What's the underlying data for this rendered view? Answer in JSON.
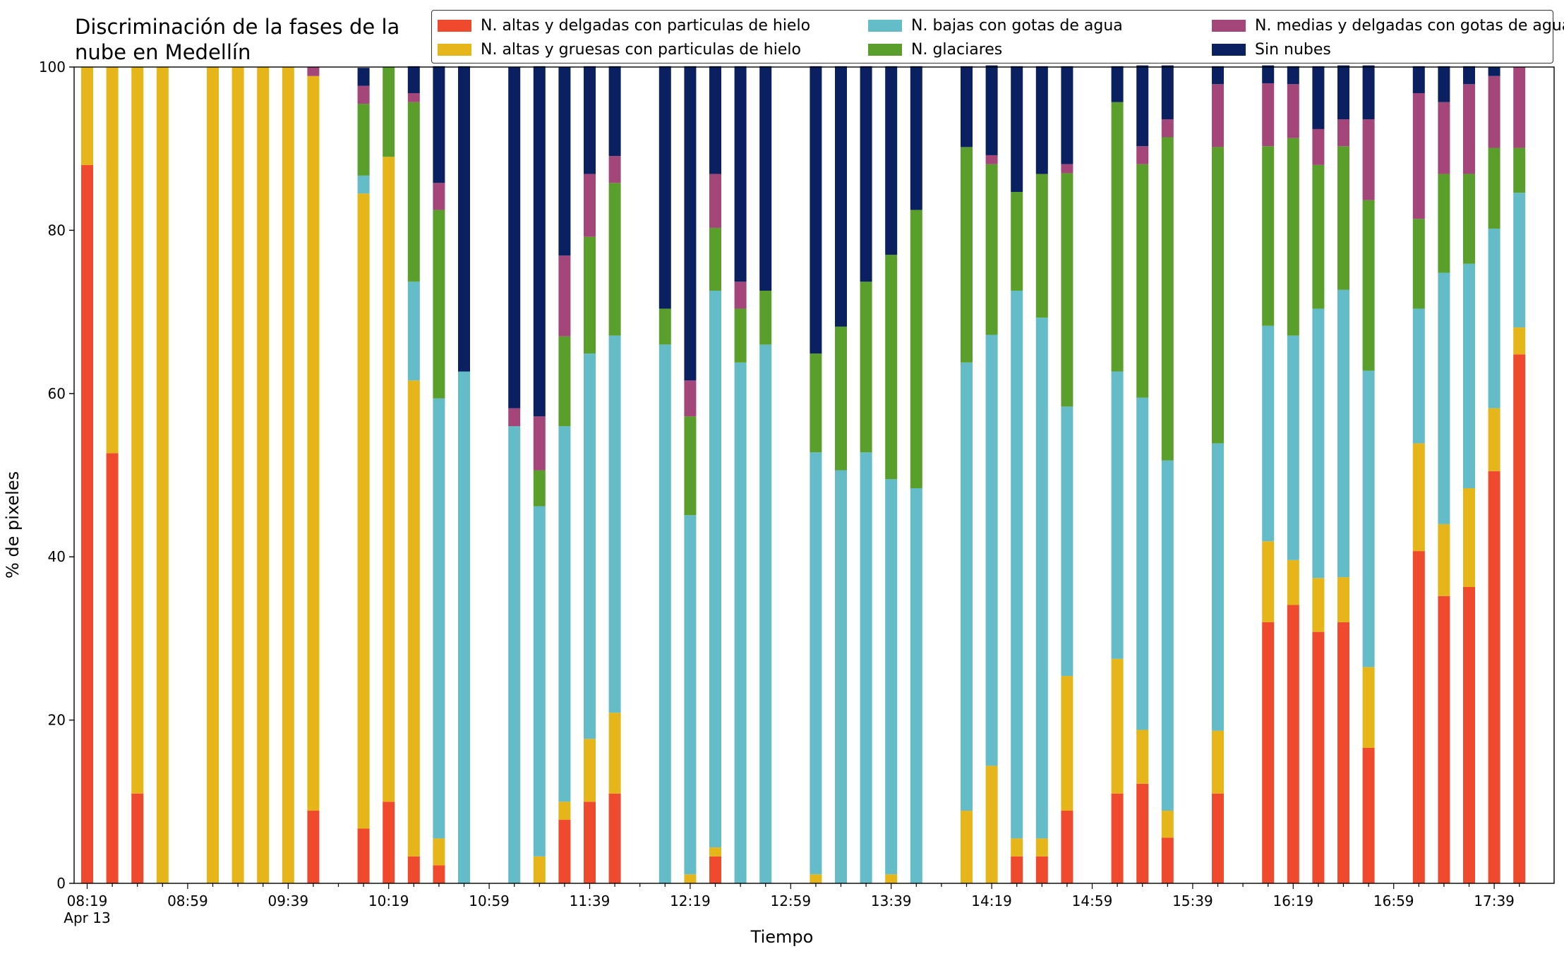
{
  "chart_data": {
    "type": "bar",
    "stacked": true,
    "title": "Discriminación de la fases de la\nnube en Medellín",
    "xlabel": "Tiempo",
    "ylabel": "% de pixeles",
    "ylim": [
      0,
      100
    ],
    "yticks": [
      "0",
      "20",
      "40",
      "60",
      "80",
      "100"
    ],
    "xtick_labels": [
      "08:19",
      "08:59",
      "09:39",
      "10:19",
      "10:59",
      "11:39",
      "12:19",
      "12:59",
      "13:39",
      "14:19",
      "14:59",
      "15:39",
      "16:19",
      "16:59",
      "17:39"
    ],
    "xdate_label": "Apr 13",
    "grid": false,
    "legend_position": "top-right",
    "x": [
      "08:19",
      "08:29",
      "08:39",
      "08:49",
      "08:59",
      "09:09",
      "09:19",
      "09:29",
      "09:39",
      "09:49",
      "09:59",
      "10:09",
      "10:19",
      "10:29",
      "10:39",
      "10:49",
      "10:59",
      "11:09",
      "11:19",
      "11:29",
      "11:39",
      "11:49",
      "11:59",
      "12:09",
      "12:19",
      "12:29",
      "12:39",
      "12:49",
      "12:59",
      "13:09",
      "13:19",
      "13:29",
      "13:39",
      "13:49",
      "13:59",
      "14:09",
      "14:19",
      "14:29",
      "14:39",
      "14:49",
      "14:59",
      "15:09",
      "15:19",
      "15:29",
      "15:39",
      "15:49",
      "15:59",
      "16:09",
      "16:19",
      "16:29",
      "16:39",
      "16:49",
      "16:59",
      "17:09",
      "17:19",
      "17:29",
      "17:39",
      "17:49"
    ],
    "series": [
      {
        "name": "N. altas y delgadas con particulas de hielo",
        "color": "#ef4a2d",
        "values": [
          88,
          52.7,
          11,
          0,
          null,
          0,
          0,
          0,
          0,
          8.9,
          null,
          6.7,
          10,
          3.3,
          2.2,
          0,
          null,
          0,
          0,
          7.8,
          10,
          11,
          null,
          0,
          0,
          3.3,
          0,
          0,
          null,
          0,
          0,
          0,
          0,
          0,
          null,
          0,
          0,
          3.3,
          3.3,
          8.9,
          null,
          11,
          12.2,
          5.6,
          null,
          11,
          null,
          32,
          34.1,
          30.8,
          32,
          16.6,
          null,
          40.7,
          35.2,
          36.3,
          50.5,
          64.8
        ]
      },
      {
        "name": "N. altas y gruesas con particulas de hielo",
        "color": "#e6b519",
        "values": [
          12,
          47.3,
          89,
          100,
          null,
          100,
          100,
          100,
          100,
          90,
          null,
          77.8,
          79,
          58.3,
          3.3,
          0,
          null,
          0,
          3.3,
          2.2,
          7.7,
          9.9,
          null,
          0,
          1.1,
          1.1,
          0,
          0,
          null,
          1.1,
          0,
          0,
          1.1,
          0,
          null,
          8.9,
          14.4,
          2.2,
          2.2,
          16.5,
          null,
          16.5,
          6.6,
          3.3,
          null,
          7.7,
          null,
          9.9,
          5.5,
          6.6,
          5.5,
          9.9,
          null,
          13.2,
          8.8,
          12.1,
          7.7,
          3.3
        ]
      },
      {
        "name": "N. bajas con gotas de agua",
        "color": "#64bcc8",
        "values": [
          0,
          0,
          0,
          0,
          null,
          0,
          0,
          0,
          0,
          0,
          null,
          2.2,
          0,
          12.1,
          53.9,
          62.7,
          null,
          56,
          42.9,
          46,
          47.2,
          46.2,
          null,
          66,
          44,
          68.2,
          63.8,
          66,
          null,
          51.7,
          50.6,
          52.8,
          48.4,
          48.4,
          null,
          54.9,
          52.8,
          67.1,
          63.8,
          33,
          null,
          35.2,
          40.7,
          42.9,
          null,
          35.2,
          null,
          26.4,
          27.5,
          33,
          35.2,
          36.3,
          null,
          16.5,
          30.8,
          27.5,
          22,
          16.5
        ]
      },
      {
        "name": "N. glaciares",
        "color": "#5a9e2c",
        "values": [
          0,
          0,
          0,
          0,
          null,
          0,
          0,
          0,
          0,
          0,
          null,
          8.8,
          11,
          22,
          23.1,
          0,
          null,
          0,
          4.4,
          11,
          14.3,
          18.7,
          null,
          4.4,
          12.1,
          7.7,
          6.6,
          6.6,
          null,
          12.1,
          17.6,
          20.9,
          27.5,
          34.1,
          null,
          26.4,
          20.9,
          12.1,
          17.6,
          28.6,
          null,
          33,
          28.6,
          39.6,
          null,
          36.3,
          null,
          22,
          24.2,
          17.6,
          17.6,
          20.9,
          null,
          11,
          12.1,
          11,
          9.9,
          5.5
        ]
      },
      {
        "name": "N. medias y delgadas con gotas de agua",
        "color": "#a4467a",
        "values": [
          0,
          0,
          0,
          0,
          null,
          0,
          0,
          0,
          0,
          1.1,
          null,
          2.2,
          0,
          1.1,
          3.3,
          0,
          null,
          2.2,
          6.6,
          9.9,
          7.7,
          3.3,
          null,
          0,
          4.4,
          6.6,
          3.3,
          0,
          null,
          0,
          0,
          0,
          0,
          0,
          null,
          0,
          1.1,
          0,
          0,
          1.1,
          null,
          0,
          2.2,
          2.2,
          null,
          7.7,
          null,
          7.7,
          6.6,
          4.4,
          3.3,
          9.9,
          null,
          15.4,
          8.8,
          11,
          8.8,
          9.9
        ]
      },
      {
        "name": "Sin nubes",
        "color": "#0b2061",
        "values": [
          0,
          0,
          0,
          0,
          null,
          0,
          0,
          0,
          0,
          0,
          null,
          2.2,
          0,
          3.3,
          14.3,
          37.4,
          null,
          41.8,
          42.9,
          23.1,
          13.2,
          11,
          null,
          29.7,
          38.5,
          13.2,
          26.4,
          27.5,
          null,
          35.2,
          31.9,
          26.4,
          23.1,
          17.6,
          null,
          9.9,
          11,
          15.4,
          13.2,
          12,
          null,
          4.4,
          9.9,
          6.6,
          null,
          2.2,
          null,
          2.2,
          2.2,
          7.7,
          6.6,
          6.6,
          null,
          3.3,
          4.4,
          2.2,
          1.1,
          0
        ]
      }
    ]
  }
}
